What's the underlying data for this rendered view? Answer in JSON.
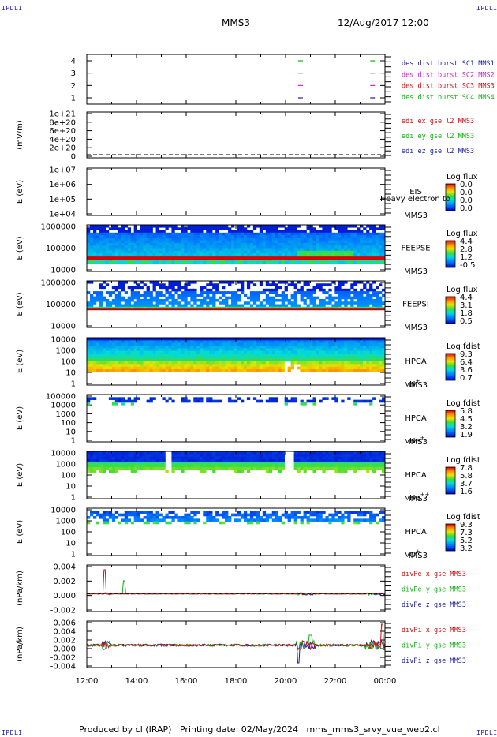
{
  "header": {
    "corner_tl": "IPDLI",
    "corner_tr": "IPDLI",
    "corner_bl": "IPDLI",
    "corner_br": "IPDLI",
    "spacecraft": "MMS3",
    "datetime": "12/Aug/2017 12:00"
  },
  "footer": {
    "produced": "Produced by cl (IRAP)",
    "printed": "Printing date: 02/May/2024",
    "program": "mms_mms3_srvy_vue_web2.cl"
  },
  "colors": {
    "blue": "#1a1aa8",
    "magenta": "#d020d0",
    "red": "#d01010",
    "green": "#10b010"
  },
  "chart_data": [
    {
      "id": "burst",
      "type": "scatter",
      "ylabel": "",
      "yticks": [
        "4",
        "3",
        "2",
        "1"
      ],
      "legend": [
        {
          "label": "des dist burst SC1 MMS1",
          "color": "#1a1aa8"
        },
        {
          "label": "des dist burst SC2 MMS2",
          "color": "#d020d0"
        },
        {
          "label": "des dist burst SC3 MMS3",
          "color": "#d01010"
        },
        {
          "label": "des dist burst SC4 MMS4",
          "color": "#10b010"
        }
      ],
      "points": [
        {
          "t": 20.6,
          "y": 4,
          "color": "#10b010"
        },
        {
          "t": 20.6,
          "y": 3,
          "color": "#d01010"
        },
        {
          "t": 20.6,
          "y": 2,
          "color": "#d020d0"
        },
        {
          "t": 20.6,
          "y": 1,
          "color": "#1a1aa8"
        },
        {
          "t": 23.5,
          "y": 4,
          "color": "#10b010"
        },
        {
          "t": 23.5,
          "y": 3,
          "color": "#d01010"
        },
        {
          "t": 23.5,
          "y": 2,
          "color": "#d020d0"
        },
        {
          "t": 23.5,
          "y": 1,
          "color": "#1a1aa8"
        }
      ]
    },
    {
      "id": "edi",
      "type": "line",
      "ylabel": "(mV/m)",
      "yticks": [
        "1e+21",
        "8e+20",
        "6e+20",
        "4e+20",
        "2e+20",
        "0"
      ],
      "legend": [
        {
          "label": "edi ex gse l2 MMS3",
          "color": "#d01010"
        },
        {
          "label": "edi ey gse l2 MMS3",
          "color": "#10b010"
        },
        {
          "label": "edi ez gse l2 MMS3",
          "color": "#1a1aa8"
        }
      ]
    },
    {
      "id": "eis",
      "type": "heatmap",
      "ylabel": "E (eV)",
      "yticks": [
        "1e+07",
        "1e+06",
        "1e+05",
        "1e+04"
      ],
      "side_label": [
        "EIS",
        "MMS3"
      ],
      "overlay_text": "Heavy electron to",
      "colorbar": {
        "title": "Log flux",
        "ticks": [
          "0.0",
          "0.0",
          "0.0",
          "0.0"
        ]
      }
    },
    {
      "id": "feeps_e",
      "type": "heatmap",
      "ylabel": "E (eV)",
      "yticks": [
        "1000000",
        "100000",
        "10000"
      ],
      "side_label": [
        "FEEPSE",
        "MMS3"
      ],
      "colorbar": {
        "title": "Log flux",
        "ticks": [
          "4.4",
          "2.8",
          "1.2",
          "-0.5"
        ]
      }
    },
    {
      "id": "feeps_i",
      "type": "heatmap",
      "ylabel": "E (eV)",
      "yticks": [
        "1000000",
        "100000",
        "10000"
      ],
      "side_label": [
        "FEEPSI",
        "MMS3"
      ],
      "colorbar": {
        "title": "Log flux",
        "ticks": [
          "4.4",
          "3.1",
          "1.8",
          "0.5"
        ]
      }
    },
    {
      "id": "hpca_h",
      "type": "heatmap",
      "ylabel": "E (eV)",
      "yticks": [
        "10000",
        "1000",
        "100",
        "10",
        "1"
      ],
      "side_label": [
        "HPCA",
        "MMS3"
      ],
      "species": "H",
      "species_sup": "+",
      "colorbar": {
        "title": "Log fdist",
        "ticks": [
          "9.3",
          "6.4",
          "3.6",
          "0.7"
        ]
      }
    },
    {
      "id": "hpca_he",
      "type": "heatmap",
      "ylabel": "E (eV)",
      "yticks": [
        "100000",
        "10000",
        "1000",
        "100",
        "10",
        "1"
      ],
      "side_label": [
        "HPCA",
        "MMS3"
      ],
      "species": "He",
      "species_sup": "+",
      "colorbar": {
        "title": "Log fdist",
        "ticks": [
          "5.8",
          "4.5",
          "3.2",
          "1.9"
        ]
      }
    },
    {
      "id": "hpca_hepp",
      "type": "heatmap",
      "ylabel": "E (eV)",
      "yticks": [
        "10000",
        "1000",
        "100",
        "10",
        "1"
      ],
      "side_label": [
        "HPCA",
        "MMS3"
      ],
      "species": "He",
      "species_sup": "++",
      "colorbar": {
        "title": "Log fdist",
        "ticks": [
          "7.8",
          "5.8",
          "3.7",
          "1.6"
        ]
      }
    },
    {
      "id": "hpca_o",
      "type": "heatmap",
      "ylabel": "E (eV)",
      "yticks": [
        "10000",
        "1000",
        "100",
        "10",
        "1"
      ],
      "side_label": [
        "HPCA",
        "MMS3"
      ],
      "species": "O",
      "species_sup": "+",
      "colorbar": {
        "title": "Log fdist",
        "ticks": [
          "9.3",
          "7.3",
          "5.2",
          "3.2"
        ]
      }
    },
    {
      "id": "divpe",
      "type": "line",
      "ylabel": "(nPa/km)",
      "yticks": [
        "0.004",
        "0.002",
        "0.000",
        "-0.002"
      ],
      "legend": [
        {
          "label": "divPe x gse MMS3",
          "color": "#d01010"
        },
        {
          "label": "divPe y gse MMS3",
          "color": "#10b010"
        },
        {
          "label": "divPe z gse MMS3",
          "color": "#1a1aa8"
        }
      ]
    },
    {
      "id": "divpi",
      "type": "line",
      "ylabel": "(nPa/km)",
      "yticks": [
        "0.006",
        "0.004",
        "0.002",
        "0.000",
        "-0.002",
        "-0.004"
      ],
      "legend": [
        {
          "label": "divPi x gse MMS3",
          "color": "#d01010"
        },
        {
          "label": "divPi y gse MMS3",
          "color": "#10b010"
        },
        {
          "label": "divPi z gse MMS3",
          "color": "#1a1aa8"
        }
      ]
    }
  ],
  "xaxis": {
    "range_hours": [
      12,
      24
    ],
    "tick_labels": [
      "12:00",
      "14:00",
      "16:00",
      "18:00",
      "20:00",
      "22:00",
      "00:00"
    ]
  }
}
